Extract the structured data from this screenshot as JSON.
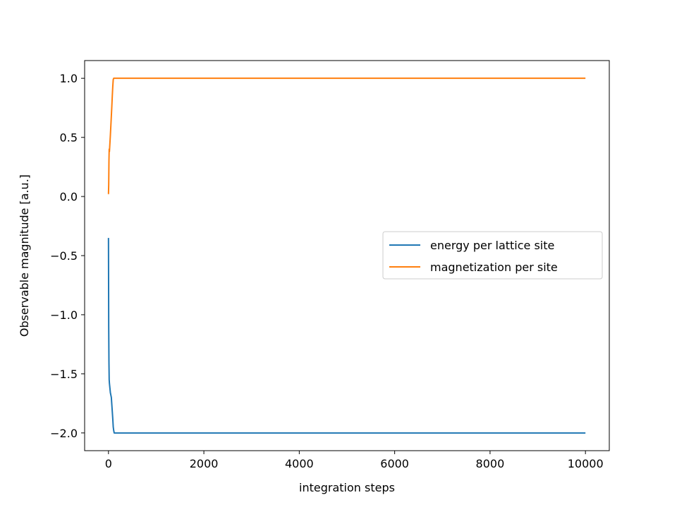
{
  "chart_data": {
    "type": "line",
    "title": "",
    "xlabel": "integration steps",
    "ylabel": "Observable magnitude [a.u.]",
    "xlim": [
      -500,
      10500
    ],
    "ylim": [
      -2.15,
      1.15
    ],
    "xticks": [
      0,
      2000,
      4000,
      6000,
      8000,
      10000
    ],
    "xtick_labels": [
      "0",
      "2000",
      "4000",
      "6000",
      "8000",
      "10000"
    ],
    "yticks": [
      1.0,
      0.5,
      0.0,
      -0.5,
      -1.0,
      -1.5,
      -2.0
    ],
    "ytick_labels": [
      "1.0",
      "0.5",
      "0.0",
      "−0.5",
      "−1.0",
      "−1.5",
      "−2.0"
    ],
    "grid": false,
    "legend": {
      "placement": "center-right"
    },
    "series": [
      {
        "name": "energy per lattice site",
        "color": "#1f77b4",
        "x": [
          0,
          5,
          10,
          15,
          20,
          30,
          40,
          50,
          60,
          70,
          80,
          90,
          100,
          110,
          120,
          150,
          200,
          300,
          400,
          500,
          600,
          700,
          800,
          900,
          1000,
          1500,
          2000,
          2500,
          3000,
          3500,
          4000,
          4500,
          5000,
          5500,
          6000,
          6500,
          7000,
          7500,
          8000,
          8500,
          9000,
          9500,
          10000
        ],
        "y": [
          -0.35,
          -1.1,
          -1.4,
          -1.55,
          -1.58,
          -1.62,
          -1.66,
          -1.68,
          -1.7,
          -1.76,
          -1.82,
          -1.88,
          -1.95,
          -1.98,
          -2.0,
          -2.0,
          -2.0,
          -2.0,
          -2.0,
          -2.0,
          -2.0,
          -2.0,
          -2.0,
          -2.0,
          -2.0,
          -2.0,
          -2.0,
          -2.0,
          -2.0,
          -2.0,
          -2.0,
          -2.0,
          -2.0,
          -2.0,
          -2.0,
          -2.0,
          -2.0,
          -2.0,
          -2.0,
          -2.0,
          -2.0,
          -2.0,
          -2.0
        ]
      },
      {
        "name": "magnetization per site",
        "color": "#ff7f0e",
        "x": [
          0,
          5,
          10,
          15,
          20,
          30,
          40,
          50,
          60,
          70,
          80,
          90,
          100,
          110,
          120,
          150,
          200,
          300,
          400,
          500,
          600,
          700,
          800,
          900,
          1000,
          1500,
          2000,
          2500,
          3000,
          3500,
          4000,
          4500,
          5000,
          5500,
          6000,
          6500,
          7000,
          7500,
          8000,
          8500,
          9000,
          9500,
          10000
        ],
        "y": [
          0.02,
          0.1,
          0.3,
          0.4,
          0.38,
          0.45,
          0.52,
          0.6,
          0.68,
          0.76,
          0.85,
          0.93,
          0.99,
          1.0,
          1.0,
          1.0,
          1.0,
          1.0,
          1.0,
          1.0,
          1.0,
          1.0,
          1.0,
          1.0,
          1.0,
          1.0,
          1.0,
          1.0,
          1.0,
          1.0,
          1.0,
          1.0,
          1.0,
          1.0,
          1.0,
          1.0,
          1.0,
          1.0,
          1.0,
          1.0,
          1.0,
          1.0,
          1.0
        ]
      }
    ]
  }
}
